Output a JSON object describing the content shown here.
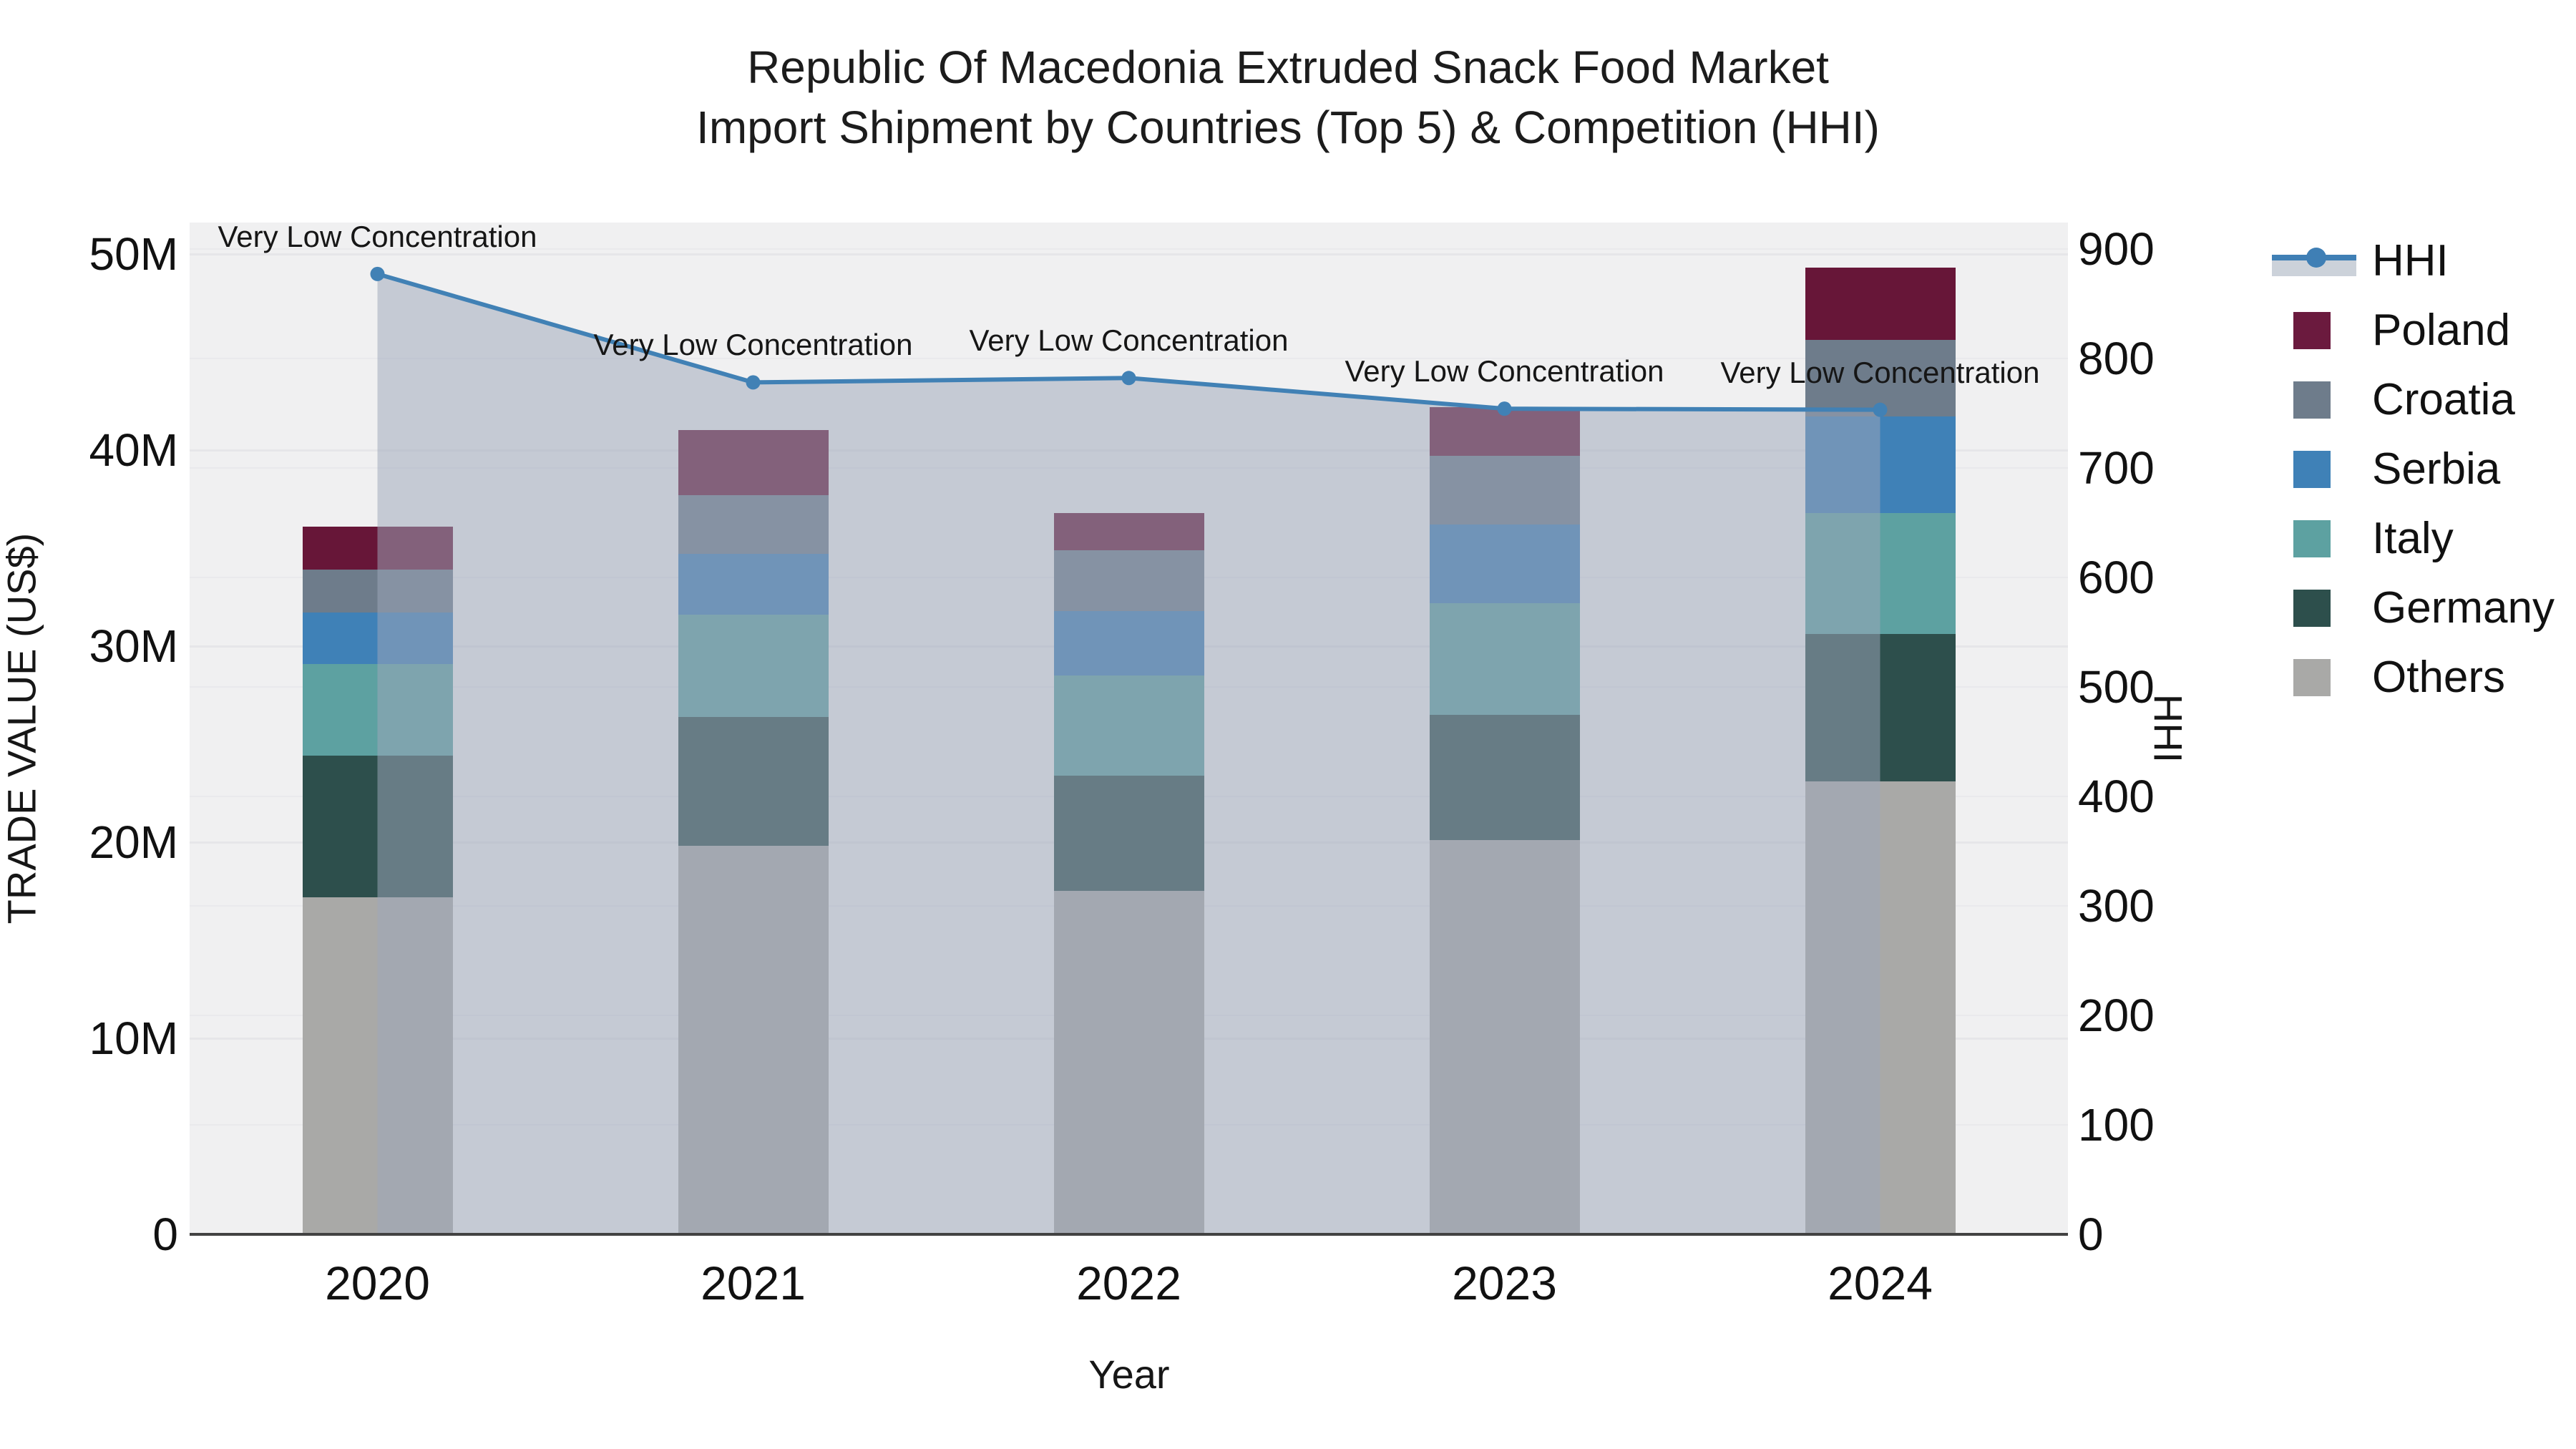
{
  "title": {
    "line1": "Republic Of Macedonia Extruded Snack Food Market",
    "line2": "Import Shipment by Countries (Top 5) & Competition (HHI)"
  },
  "axes": {
    "x": {
      "title": "Year",
      "ticks": [
        "2020",
        "2021",
        "2022",
        "2023",
        "2024"
      ]
    },
    "y_left": {
      "title": "TRADE VALUE (US$)",
      "ticks": [
        "0",
        "10M",
        "20M",
        "30M",
        "40M",
        "50M"
      ],
      "tick_values": [
        0,
        10,
        20,
        30,
        40,
        50
      ],
      "max": 51.6
    },
    "y_right": {
      "title": "HHI",
      "ticks": [
        "0",
        "100",
        "200",
        "300",
        "400",
        "500",
        "600",
        "700",
        "800",
        "900"
      ],
      "tick_values": [
        0,
        100,
        200,
        300,
        400,
        500,
        600,
        700,
        800,
        900
      ],
      "max": 924
    }
  },
  "legend": {
    "items": [
      {
        "label": "HHI",
        "type": "line",
        "color": "#3f7fb5"
      },
      {
        "label": "Poland",
        "type": "square",
        "color": "#6b1a3e"
      },
      {
        "label": "Croatia",
        "type": "square",
        "color": "#6e7c8b"
      },
      {
        "label": "Serbia",
        "type": "square",
        "color": "#3f81b7"
      },
      {
        "label": "Italy",
        "type": "square",
        "color": "#5da1a1"
      },
      {
        "label": "Germany",
        "type": "square",
        "color": "#2d4f4c"
      },
      {
        "label": "Others",
        "type": "square",
        "color": "#a9a9a7"
      }
    ]
  },
  "chart_data": {
    "type": "bar",
    "subtype": "stacked-bar-with-line",
    "title": "Republic Of Macedonia Extruded Snack Food Market Import Shipment by Countries (Top 5) & Competition (HHI)",
    "xlabel": "Year",
    "ylabel_left": "TRADE VALUE (US$)",
    "ylabel_right": "HHI",
    "categories": [
      "2020",
      "2021",
      "2022",
      "2023",
      "2024"
    ],
    "unit": "million US$",
    "ylim_left": [
      0,
      51.6
    ],
    "ylim_right": [
      0,
      924
    ],
    "grid": true,
    "legend_position": "right",
    "series": [
      {
        "name": "Others",
        "color": "#a9a9a7",
        "values": [
          17.2,
          19.8,
          17.5,
          20.1,
          23.1
        ]
      },
      {
        "name": "Germany",
        "color": "#2d4f4c",
        "values": [
          7.2,
          6.6,
          5.9,
          6.4,
          7.5
        ]
      },
      {
        "name": "Italy",
        "color": "#5da1a1",
        "values": [
          4.7,
          5.2,
          5.1,
          5.7,
          6.2
        ]
      },
      {
        "name": "Serbia",
        "color": "#3f81b7",
        "values": [
          2.6,
          3.1,
          3.3,
          4.0,
          4.9
        ]
      },
      {
        "name": "Croatia",
        "color": "#6e7c8b",
        "values": [
          2.2,
          3.0,
          3.1,
          3.5,
          3.9
        ]
      },
      {
        "name": "Poland",
        "color": "#671638",
        "values": [
          2.2,
          3.3,
          1.9,
          2.5,
          3.7
        ]
      }
    ],
    "bar_totals": [
      36.1,
      41.0,
      36.8,
      42.2,
      49.3
    ],
    "line_series": {
      "name": "HHI",
      "axis": "right",
      "color": "#4181b5",
      "fill_color": "rgba(158,167,186,0.52)",
      "values": [
        877,
        778,
        782,
        754,
        753
      ]
    },
    "annotations": [
      "Very Low Concentration",
      "Very Low Concentration",
      "Very Low Concentration",
      "Very Low Concentration",
      "Very Low Concentration"
    ]
  }
}
